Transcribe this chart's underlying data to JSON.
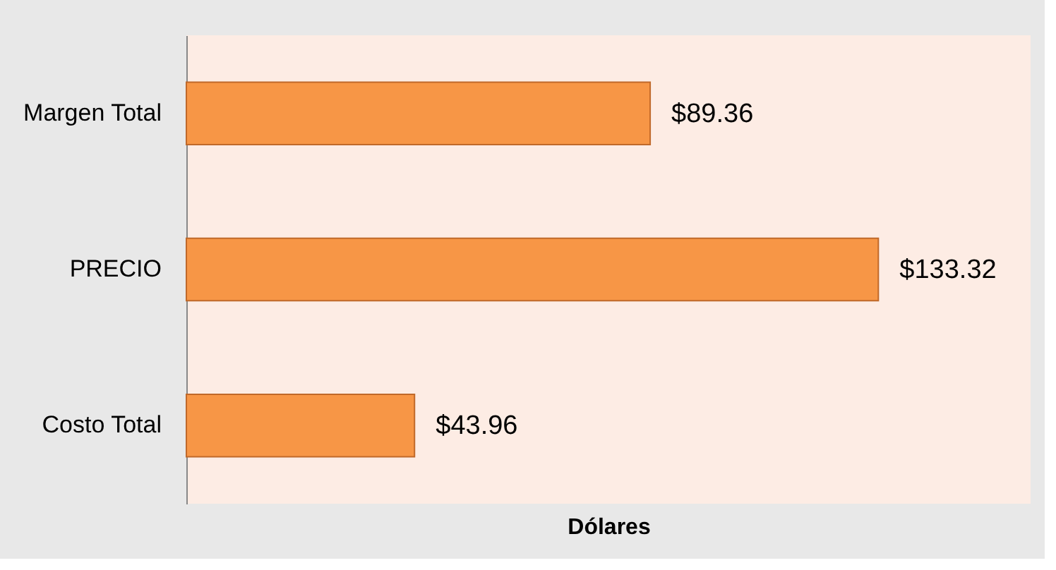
{
  "chart_data": {
    "type": "bar",
    "orientation": "horizontal",
    "xlabel": "Dólares",
    "categories": [
      "Margen Total",
      "PRECIO",
      "Costo Total"
    ],
    "values": [
      89.36,
      133.32,
      43.96
    ],
    "value_labels": [
      "$89.36",
      "$133.32",
      "$43.96"
    ],
    "color": "#f79646",
    "grid": false
  }
}
